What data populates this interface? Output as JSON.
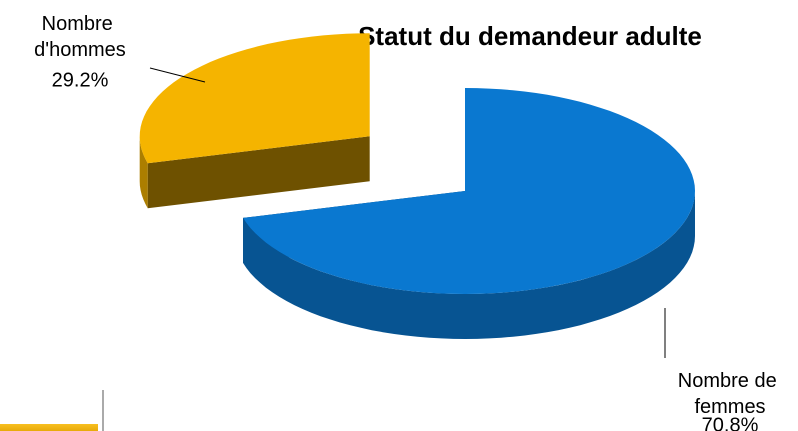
{
  "chart_data": {
    "type": "pie3d",
    "title": "Statut du demandeur adulte",
    "series": [
      {
        "name": "Nombre de femmes",
        "color": "#0a78d0",
        "values": [
          70.8
        ],
        "value_labels": [
          "70.8%"
        ]
      },
      {
        "name": "Nombre d'hommes",
        "color": "#f5b400",
        "values": [
          29.2
        ],
        "value_labels": [
          "29.2%"
        ]
      }
    ]
  }
}
